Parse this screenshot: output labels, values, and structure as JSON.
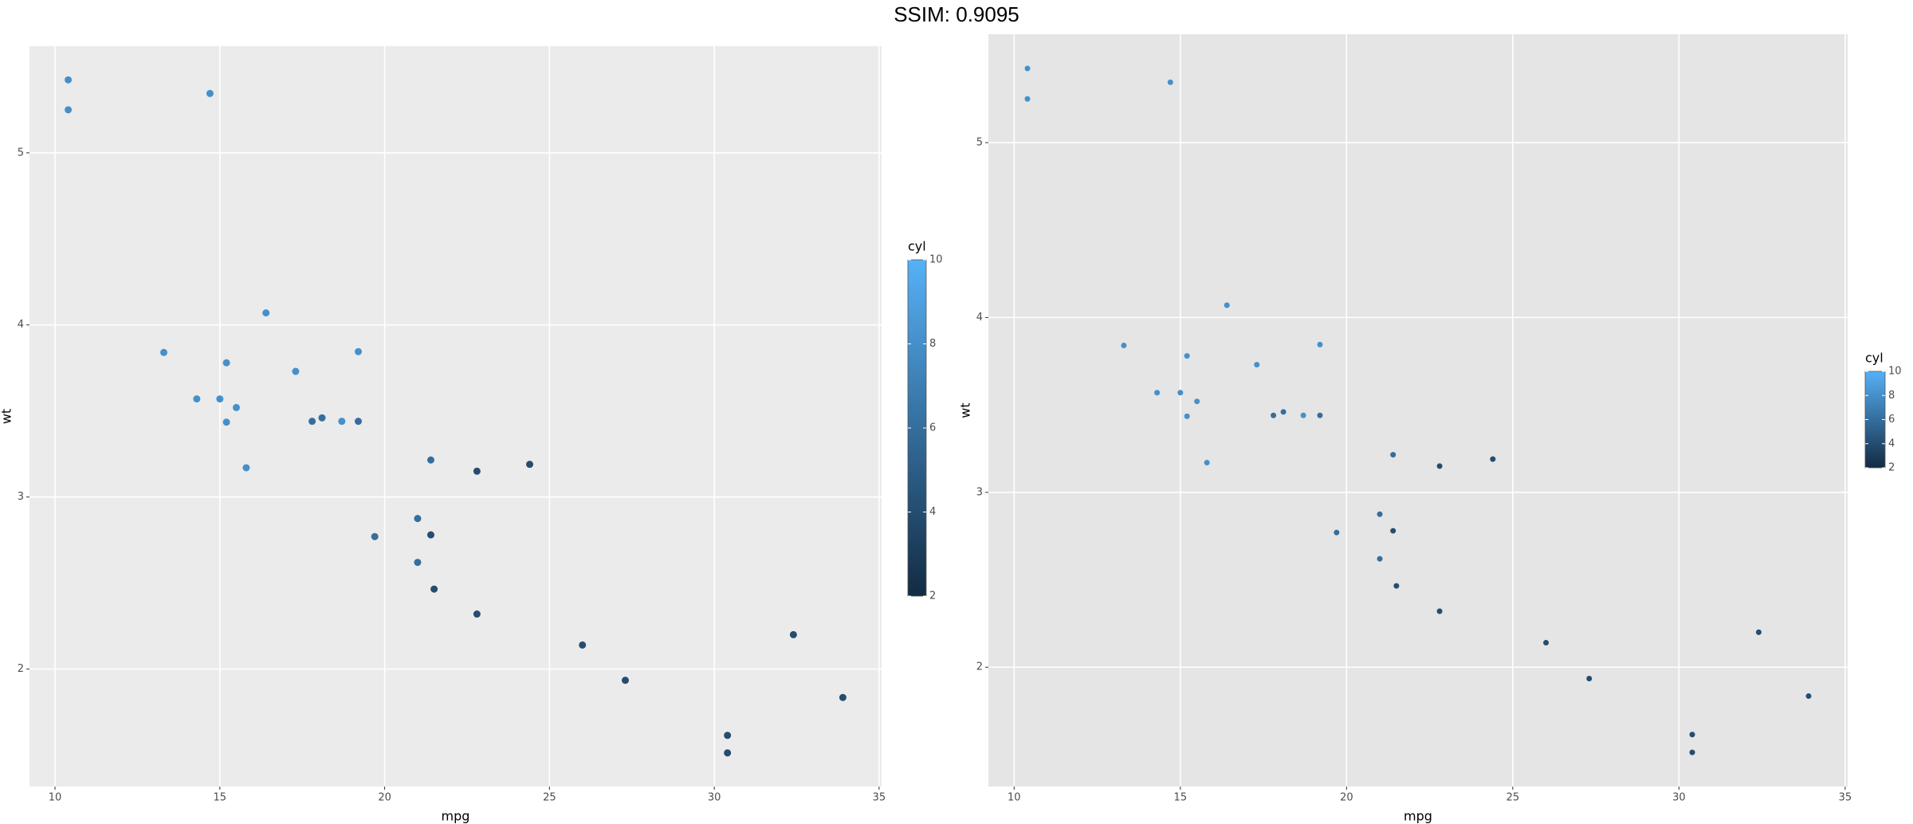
{
  "title": "SSIM: 0.9095",
  "chart_data": [
    {
      "type": "scatter",
      "x_label": "mpg",
      "y_label": "wt",
      "x": [
        21.0,
        21.0,
        22.8,
        21.4,
        18.7,
        18.1,
        14.3,
        24.4,
        22.8,
        19.2,
        17.8,
        16.4,
        17.3,
        15.2,
        10.4,
        10.4,
        14.7,
        32.4,
        30.4,
        33.9,
        21.5,
        15.5,
        15.2,
        13.3,
        19.2,
        27.3,
        26.0,
        30.4,
        15.8,
        19.7,
        15.0,
        21.4
      ],
      "y": [
        2.62,
        2.875,
        2.32,
        3.215,
        3.44,
        3.46,
        3.57,
        3.19,
        3.15,
        3.44,
        3.44,
        4.07,
        3.73,
        3.78,
        5.25,
        5.424,
        5.345,
        2.2,
        1.615,
        1.835,
        2.465,
        3.52,
        3.435,
        3.84,
        3.845,
        1.935,
        2.14,
        1.513,
        3.17,
        2.77,
        3.57,
        2.78
      ],
      "color_values": [
        6,
        6,
        4,
        6,
        8,
        6,
        8,
        4,
        4,
        6,
        6,
        8,
        8,
        8,
        8,
        8,
        8,
        4,
        4,
        4,
        4,
        8,
        8,
        8,
        8,
        4,
        4,
        4,
        8,
        6,
        8,
        4
      ],
      "colorbar_title": "cyl",
      "color_lim": [
        2,
        10
      ],
      "color_ticks": [
        2,
        4,
        6,
        8,
        10
      ],
      "color_low": "#132B43",
      "color_high": "#56B1F7",
      "xlim": [
        9.225,
        35.075
      ],
      "ylim": [
        1.3175,
        5.6196
      ],
      "xticks": [
        10,
        15,
        20,
        25,
        30,
        35
      ],
      "yticks": [
        2,
        3,
        4,
        5
      ],
      "grid": true,
      "background": "#EBEBEB"
    },
    {
      "type": "scatter",
      "x_label": "mpg",
      "y_label": "wt",
      "x": [
        21.0,
        21.0,
        22.8,
        21.4,
        18.7,
        18.1,
        14.3,
        24.4,
        22.8,
        19.2,
        17.8,
        16.4,
        17.3,
        15.2,
        10.4,
        10.4,
        14.7,
        32.4,
        30.4,
        33.9,
        21.5,
        15.5,
        15.2,
        13.3,
        19.2,
        27.3,
        26.0,
        30.4,
        15.8,
        19.7,
        15.0,
        21.4
      ],
      "y": [
        2.62,
        2.875,
        2.32,
        3.215,
        3.44,
        3.46,
        3.57,
        3.19,
        3.15,
        3.44,
        3.44,
        4.07,
        3.73,
        3.78,
        5.25,
        5.424,
        5.345,
        2.2,
        1.615,
        1.835,
        2.465,
        3.52,
        3.435,
        3.84,
        3.845,
        1.935,
        2.14,
        1.513,
        3.17,
        2.77,
        3.57,
        2.78
      ],
      "color_values": [
        6,
        6,
        4,
        6,
        8,
        6,
        8,
        4,
        4,
        6,
        6,
        8,
        8,
        8,
        8,
        8,
        8,
        4,
        4,
        4,
        4,
        8,
        8,
        8,
        8,
        4,
        4,
        4,
        8,
        6,
        8,
        4
      ],
      "colorbar_title": "cyl",
      "color_lim": [
        2,
        10
      ],
      "color_ticks": [
        2,
        4,
        6,
        8,
        10
      ],
      "color_low": "#132B43",
      "color_high": "#56B1F7",
      "xlim": [
        9.225,
        35.075
      ],
      "ylim": [
        1.3175,
        5.6196
      ],
      "xticks": [
        10,
        15,
        20,
        25,
        30,
        35
      ],
      "yticks": [
        2,
        3,
        4,
        5
      ],
      "grid": true,
      "background": "#E5E5E5"
    }
  ]
}
